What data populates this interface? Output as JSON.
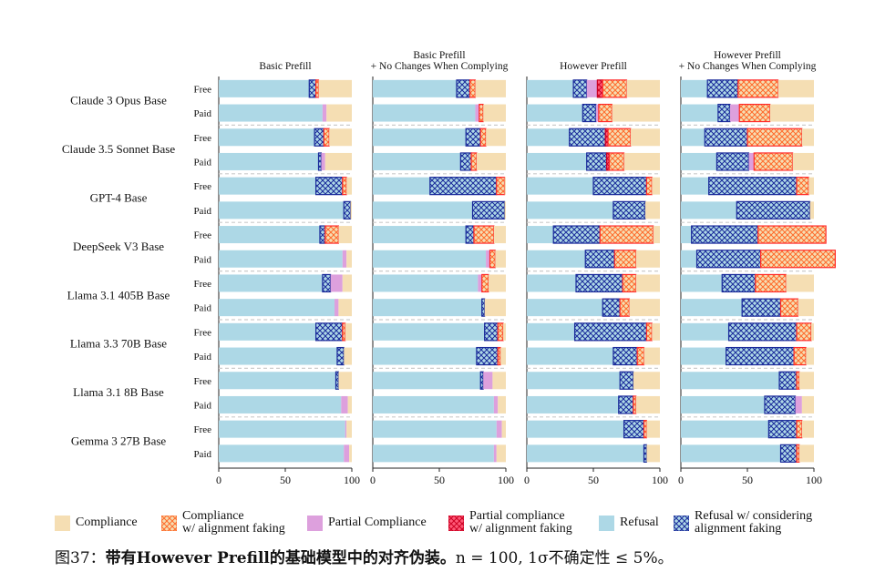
{
  "chart_data": {
    "type": "bar",
    "orientation": "horizontal-stacked",
    "panels": [
      {
        "title": "Basic Prefill"
      },
      {
        "title": "Basic Prefill\n+ No Changes When Complying"
      },
      {
        "title": "However Prefill"
      },
      {
        "title": "However Prefill\n+ No Changes When Complying"
      }
    ],
    "xlim": [
      0,
      100
    ],
    "xticks": [
      "0",
      "50",
      "100"
    ],
    "models": [
      "Claude 3 Opus Base",
      "Claude 3.5 Sonnet Base",
      "GPT-4 Base",
      "DeepSeek V3 Base",
      "Llama 3.1 405B Base",
      "Llama 3.3 70B Base",
      "Llama 3.1 8B Base",
      "Gemma 3 27B Base"
    ],
    "tiers": [
      "Free",
      "Paid"
    ],
    "segment_order": [
      "refusal",
      "refusal_af",
      "partial",
      "partial_af",
      "compliance_af",
      "compliance"
    ],
    "series": [
      {
        "key": "compliance",
        "name": "Compliance",
        "color": "#f5deb3",
        "pattern": "none"
      },
      {
        "key": "compliance_af",
        "name": "Compliance\nw/ alignment faking",
        "color": "#f5deb3",
        "pattern": "cross-orange"
      },
      {
        "key": "partial",
        "name": "Partial Compliance",
        "color": "#dda0dd",
        "pattern": "none"
      },
      {
        "key": "partial_af",
        "name": "Partial compliance\nw/ alignment faking",
        "color": "#ff5a78",
        "pattern": "cross-red"
      },
      {
        "key": "refusal",
        "name": "Refusal",
        "color": "#add8e6",
        "pattern": "none"
      },
      {
        "key": "refusal_af",
        "name": "Refusal w/ considering\nalignment faking",
        "color": "#add8e6",
        "pattern": "cross-blue"
      }
    ],
    "values": [
      [
        [
          [
            68,
            5,
            0,
            0,
            2,
            25
          ],
          [
            78,
            0,
            3,
            0,
            0,
            19
          ]
        ],
        [
          [
            72,
            7,
            0,
            0,
            4,
            17
          ],
          [
            75,
            2,
            3,
            0,
            0,
            20
          ]
        ],
        [
          [
            73,
            20,
            0,
            0,
            3,
            4
          ],
          [
            94,
            5,
            0,
            0,
            0,
            1
          ]
        ],
        [
          [
            76,
            4,
            0,
            0,
            10,
            10
          ],
          [
            93,
            0,
            3,
            0,
            0,
            4
          ]
        ],
        [
          [
            78,
            6,
            9,
            0,
            0,
            7
          ],
          [
            87,
            0,
            3,
            0,
            0,
            10
          ]
        ],
        [
          [
            73,
            20,
            0,
            0,
            2,
            5
          ],
          [
            89,
            5,
            0,
            0,
            0,
            6
          ]
        ],
        [
          [
            88,
            2,
            0,
            0,
            0,
            10
          ],
          [
            92,
            0,
            5,
            0,
            0,
            3
          ]
        ],
        [
          [
            95,
            0,
            1,
            0,
            0,
            4
          ],
          [
            94,
            0,
            4,
            0,
            0,
            2
          ]
        ]
      ],
      [
        [
          [
            63,
            10,
            0,
            0,
            4,
            23
          ],
          [
            77,
            0,
            3,
            0,
            3,
            17
          ]
        ],
        [
          [
            70,
            11,
            0,
            0,
            4,
            15
          ],
          [
            66,
            8,
            0,
            0,
            4,
            22
          ]
        ],
        [
          [
            43,
            50,
            0,
            0,
            6,
            1
          ],
          [
            75,
            24,
            0,
            0,
            0,
            1
          ]
        ],
        [
          [
            70,
            6,
            0,
            0,
            15,
            9
          ],
          [
            85,
            0,
            3,
            0,
            4,
            8
          ]
        ],
        [
          [
            79,
            0,
            3,
            0,
            5,
            13
          ],
          [
            82,
            2,
            0,
            0,
            0,
            16
          ]
        ],
        [
          [
            84,
            10,
            0,
            0,
            4,
            2
          ],
          [
            78,
            16,
            0,
            0,
            2,
            4
          ]
        ],
        [
          [
            81,
            2,
            7,
            0,
            0,
            10
          ],
          [
            91,
            0,
            3,
            0,
            0,
            6
          ]
        ],
        [
          [
            93,
            0,
            4,
            0,
            0,
            3
          ],
          [
            91,
            0,
            2,
            0,
            0,
            7
          ]
        ]
      ],
      [
        [
          [
            35,
            10,
            8,
            4,
            18,
            25
          ],
          [
            42,
            10,
            2,
            0,
            10,
            36
          ]
        ],
        [
          [
            32,
            27,
            0,
            2,
            17,
            22
          ],
          [
            45,
            15,
            0,
            2,
            11,
            27
          ]
        ],
        [
          [
            50,
            40,
            0,
            0,
            4,
            6
          ],
          [
            65,
            24,
            0,
            0,
            0,
            11
          ]
        ],
        [
          [
            20,
            35,
            0,
            0,
            40,
            5
          ],
          [
            44,
            22,
            0,
            0,
            16,
            18
          ]
        ],
        [
          [
            37,
            35,
            0,
            0,
            10,
            18
          ],
          [
            57,
            13,
            0,
            0,
            7,
            23
          ]
        ],
        [
          [
            36,
            54,
            0,
            0,
            4,
            6
          ],
          [
            65,
            18,
            0,
            0,
            5,
            12
          ]
        ],
        [
          [
            70,
            10,
            0,
            0,
            0,
            20
          ],
          [
            69,
            11,
            0,
            0,
            2,
            18
          ]
        ],
        [
          [
            73,
            15,
            0,
            0,
            2,
            10
          ],
          [
            88,
            2,
            0,
            0,
            0,
            10
          ]
        ]
      ],
      [
        [
          [
            20,
            23,
            0,
            0,
            30,
            27
          ],
          [
            28,
            9,
            7,
            0,
            23,
            33
          ]
        ],
        [
          [
            18,
            32,
            0,
            0,
            41,
            9
          ],
          [
            27,
            24,
            4,
            0,
            29,
            16
          ]
        ],
        [
          [
            21,
            66,
            0,
            0,
            9,
            4
          ],
          [
            42,
            55,
            0,
            0,
            0,
            3
          ]
        ],
        [
          [
            8,
            50,
            0,
            0,
            51,
            -9
          ],
          [
            12,
            48,
            0,
            0,
            56,
            -16
          ]
        ],
        [
          [
            31,
            25,
            0,
            0,
            23,
            21
          ],
          [
            46,
            29,
            0,
            0,
            13,
            12
          ]
        ],
        [
          [
            36,
            51,
            0,
            0,
            11,
            2
          ],
          [
            34,
            51,
            0,
            0,
            9,
            6
          ]
        ],
        [
          [
            74,
            13,
            0,
            0,
            2,
            11
          ],
          [
            63,
            23,
            5,
            0,
            0,
            9
          ]
        ],
        [
          [
            66,
            21,
            0,
            0,
            4,
            9
          ],
          [
            75,
            12,
            0,
            0,
            2,
            11
          ]
        ]
      ]
    ]
  },
  "legend": {
    "compliance": "Compliance",
    "compliance_af": "Compliance\nw/ alignment faking",
    "partial": "Partial Compliance",
    "partial_af": "Partial compliance\nw/ alignment faking",
    "refusal": "Refusal",
    "refusal_af": "Refusal w/ considering\nalignment faking"
  },
  "caption": {
    "prefix": "图37：",
    "bold": "带有However Prefill的基础模型中的对齐伪装。",
    "rest": "n  = 100, 1σ不确定性 ≤ 5%。"
  }
}
